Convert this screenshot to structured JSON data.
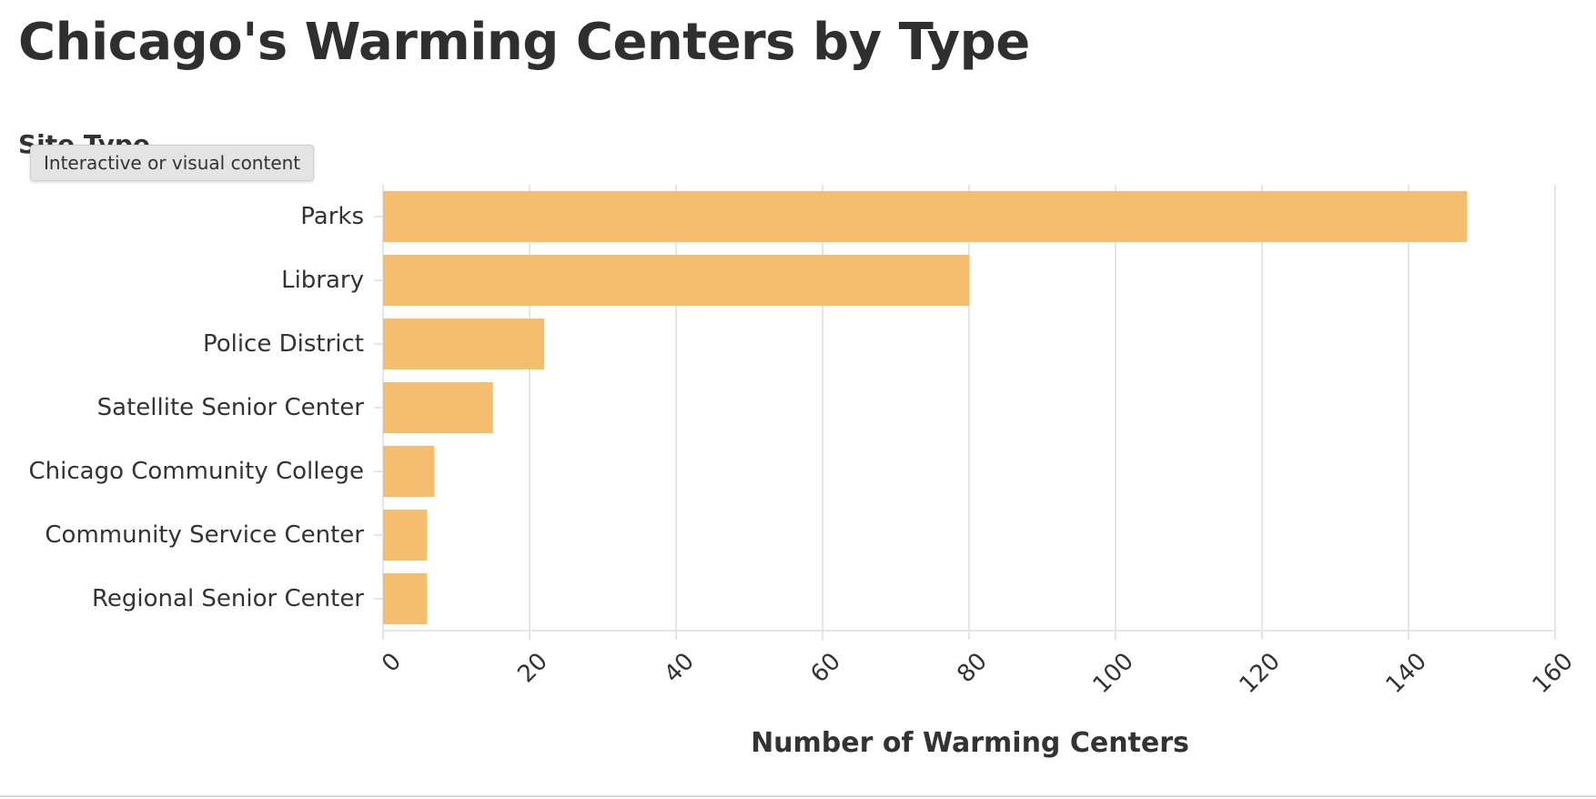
{
  "page": {
    "tooltip_text": "Interactive or visual content"
  },
  "chart_data": {
    "type": "bar",
    "orientation": "horizontal",
    "title": "Chicago's Warming Centers by Type",
    "ylabel": "Site Type",
    "xlabel": "Number of Warming Centers",
    "categories": [
      "Parks",
      "Library",
      "Police District",
      "Satellite Senior Center",
      "Chicago Community College",
      "Community Service Center",
      "Regional Senior Center"
    ],
    "values": [
      148,
      80,
      22,
      15,
      7,
      6,
      6
    ],
    "xlim": [
      0,
      160
    ],
    "x_ticks": [
      0,
      20,
      40,
      60,
      80,
      100,
      120,
      140,
      160
    ],
    "grid": true,
    "bar_color": "#f5bd6e",
    "grid_color": "#e6e6e6",
    "text_color": "#333333"
  }
}
